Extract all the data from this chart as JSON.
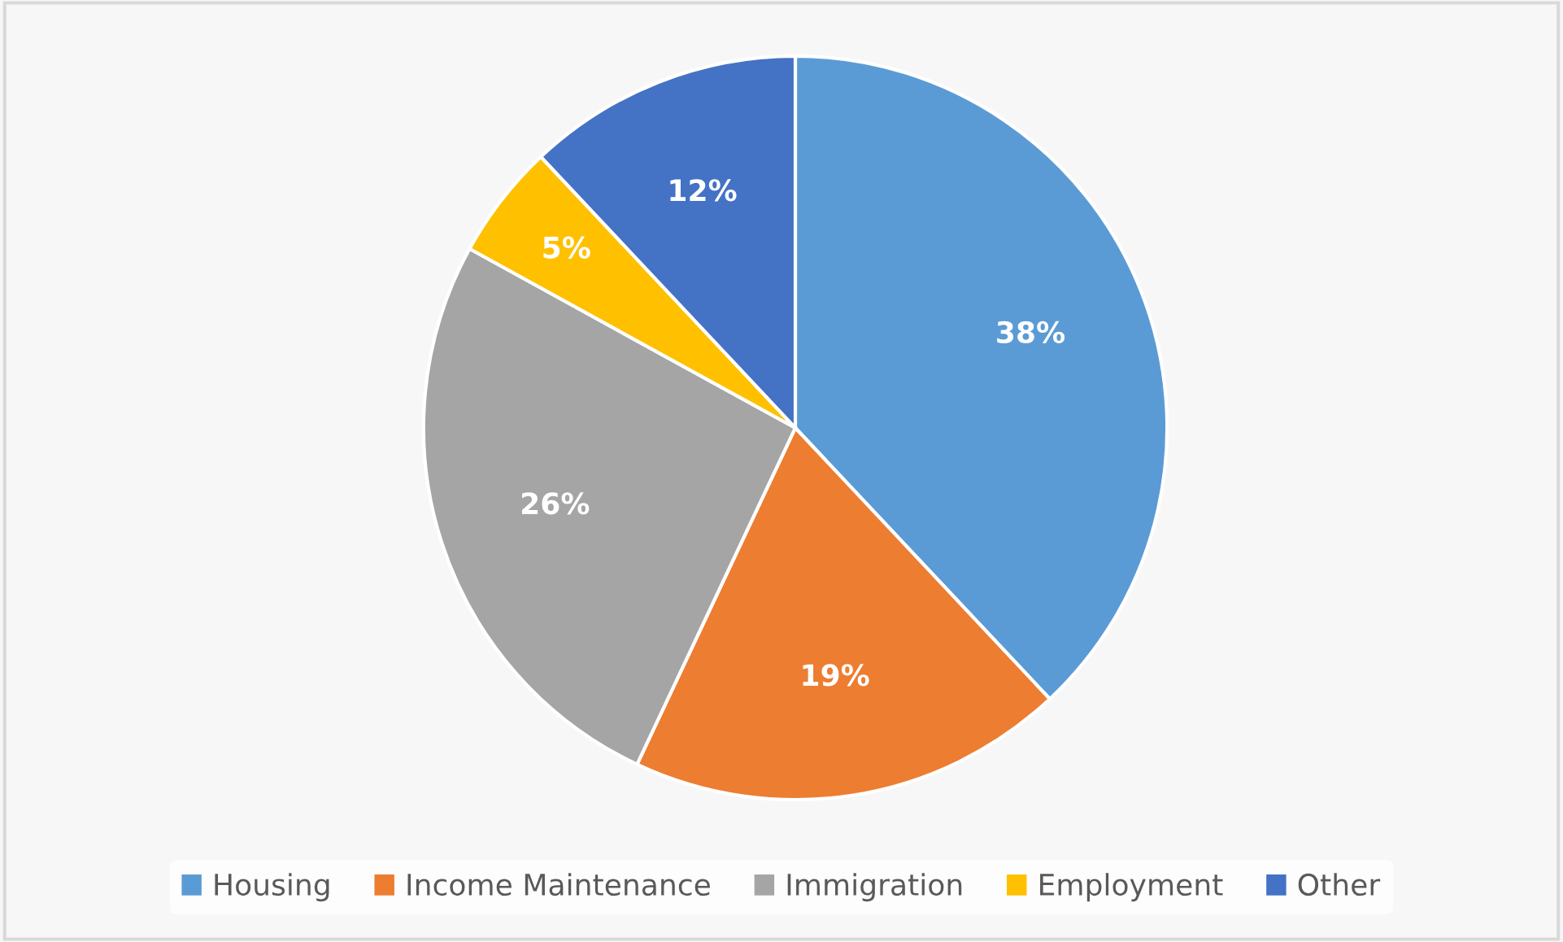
{
  "chart_data": {
    "type": "pie",
    "categories": [
      "Housing",
      "Income Maintenance",
      "Immigration",
      "Employment",
      "Other"
    ],
    "values": [
      38,
      19,
      26,
      5,
      12
    ],
    "colors": [
      "#5b9bd5",
      "#ed7d31",
      "#a5a5a5",
      "#ffc000",
      "#4472c4"
    ],
    "value_labels": [
      "38%",
      "19%",
      "26%",
      "5%",
      "12%"
    ],
    "legend": "bottom"
  }
}
